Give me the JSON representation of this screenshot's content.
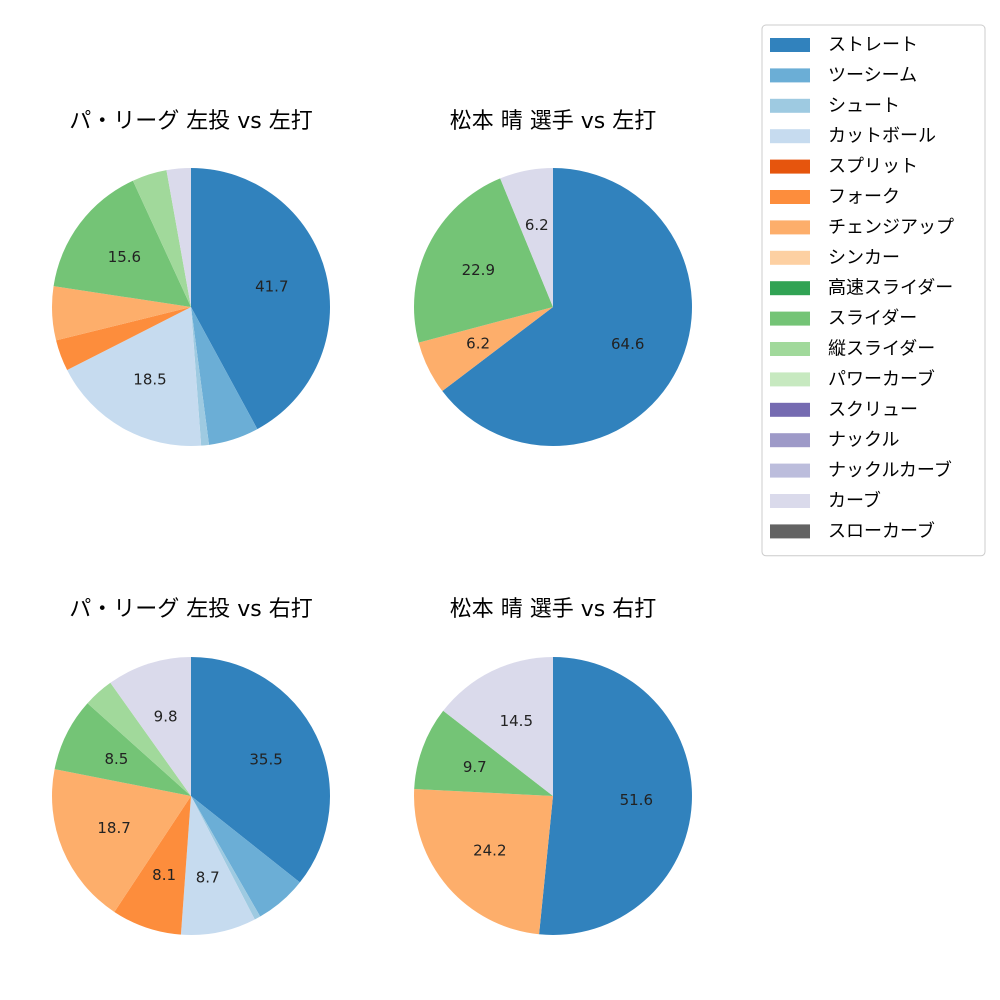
{
  "chart_data": {
    "type": "pie",
    "pitch_types": [
      {
        "name": "ストレート",
        "color": "#3182bd"
      },
      {
        "name": "ツーシーム",
        "color": "#6baed6"
      },
      {
        "name": "シュート",
        "color": "#9ecae1"
      },
      {
        "name": "カットボール",
        "color": "#c6dbef"
      },
      {
        "name": "スプリット",
        "color": "#e6550d"
      },
      {
        "name": "フォーク",
        "color": "#fd8d3c"
      },
      {
        "name": "チェンジアップ",
        "color": "#fdae6b"
      },
      {
        "name": "シンカー",
        "color": "#fdd0a2"
      },
      {
        "name": "高速スライダー",
        "color": "#31a354"
      },
      {
        "name": "スライダー",
        "color": "#74c476"
      },
      {
        "name": "縦スライダー",
        "color": "#a1d99b"
      },
      {
        "name": "パワーカーブ",
        "color": "#c7e9c0"
      },
      {
        "name": "スクリュー",
        "color": "#756bb1"
      },
      {
        "name": "ナックル",
        "color": "#9e9ac8"
      },
      {
        "name": "ナックルカーブ",
        "color": "#bcbddc"
      },
      {
        "name": "カーブ",
        "color": "#dadaeb"
      },
      {
        "name": "スローカーブ",
        "color": "#636363"
      }
    ],
    "charts": [
      {
        "title": "パ・リーグ 左投 vs 左打",
        "slices": [
          {
            "pitch": "ストレート",
            "value": 41.7,
            "label": "41.7"
          },
          {
            "pitch": "ツーシーム",
            "value": 5.8,
            "label": ""
          },
          {
            "pitch": "シュート",
            "value": 0.9,
            "label": ""
          },
          {
            "pitch": "カットボール",
            "value": 18.5,
            "label": "18.5"
          },
          {
            "pitch": "フォーク",
            "value": 3.6,
            "label": ""
          },
          {
            "pitch": "チェンジアップ",
            "value": 6.2,
            "label": ""
          },
          {
            "pitch": "スライダー",
            "value": 15.6,
            "label": "15.6"
          },
          {
            "pitch": "縦スライダー",
            "value": 4.0,
            "label": ""
          },
          {
            "pitch": "カーブ",
            "value": 2.8,
            "label": ""
          }
        ]
      },
      {
        "title": "松本 晴 選手 vs 左打",
        "slices": [
          {
            "pitch": "ストレート",
            "value": 64.6,
            "label": "64.6"
          },
          {
            "pitch": "チェンジアップ",
            "value": 6.2,
            "label": "6.2"
          },
          {
            "pitch": "スライダー",
            "value": 22.9,
            "label": "22.9"
          },
          {
            "pitch": "カーブ",
            "value": 6.2,
            "label": "6.2"
          }
        ]
      },
      {
        "title": "パ・リーグ 左投 vs 右打",
        "slices": [
          {
            "pitch": "ストレート",
            "value": 35.5,
            "label": "35.5"
          },
          {
            "pitch": "ツーシーム",
            "value": 6.0,
            "label": ""
          },
          {
            "pitch": "シュート",
            "value": 0.7,
            "label": ""
          },
          {
            "pitch": "カットボール",
            "value": 8.7,
            "label": "8.7"
          },
          {
            "pitch": "フォーク",
            "value": 8.1,
            "label": "8.1"
          },
          {
            "pitch": "チェンジアップ",
            "value": 18.7,
            "label": "18.7"
          },
          {
            "pitch": "スライダー",
            "value": 8.5,
            "label": "8.5"
          },
          {
            "pitch": "縦スライダー",
            "value": 3.5,
            "label": ""
          },
          {
            "pitch": "カーブ",
            "value": 9.8,
            "label": "9.8"
          }
        ]
      },
      {
        "title": "松本 晴 選手 vs 右打",
        "slices": [
          {
            "pitch": "ストレート",
            "value": 51.6,
            "label": "51.6"
          },
          {
            "pitch": "チェンジアップ",
            "value": 24.2,
            "label": "24.2"
          },
          {
            "pitch": "スライダー",
            "value": 9.7,
            "label": "9.7"
          },
          {
            "pitch": "カーブ",
            "value": 14.5,
            "label": "14.5"
          }
        ]
      }
    ],
    "legend": {
      "position": "top-right"
    }
  }
}
